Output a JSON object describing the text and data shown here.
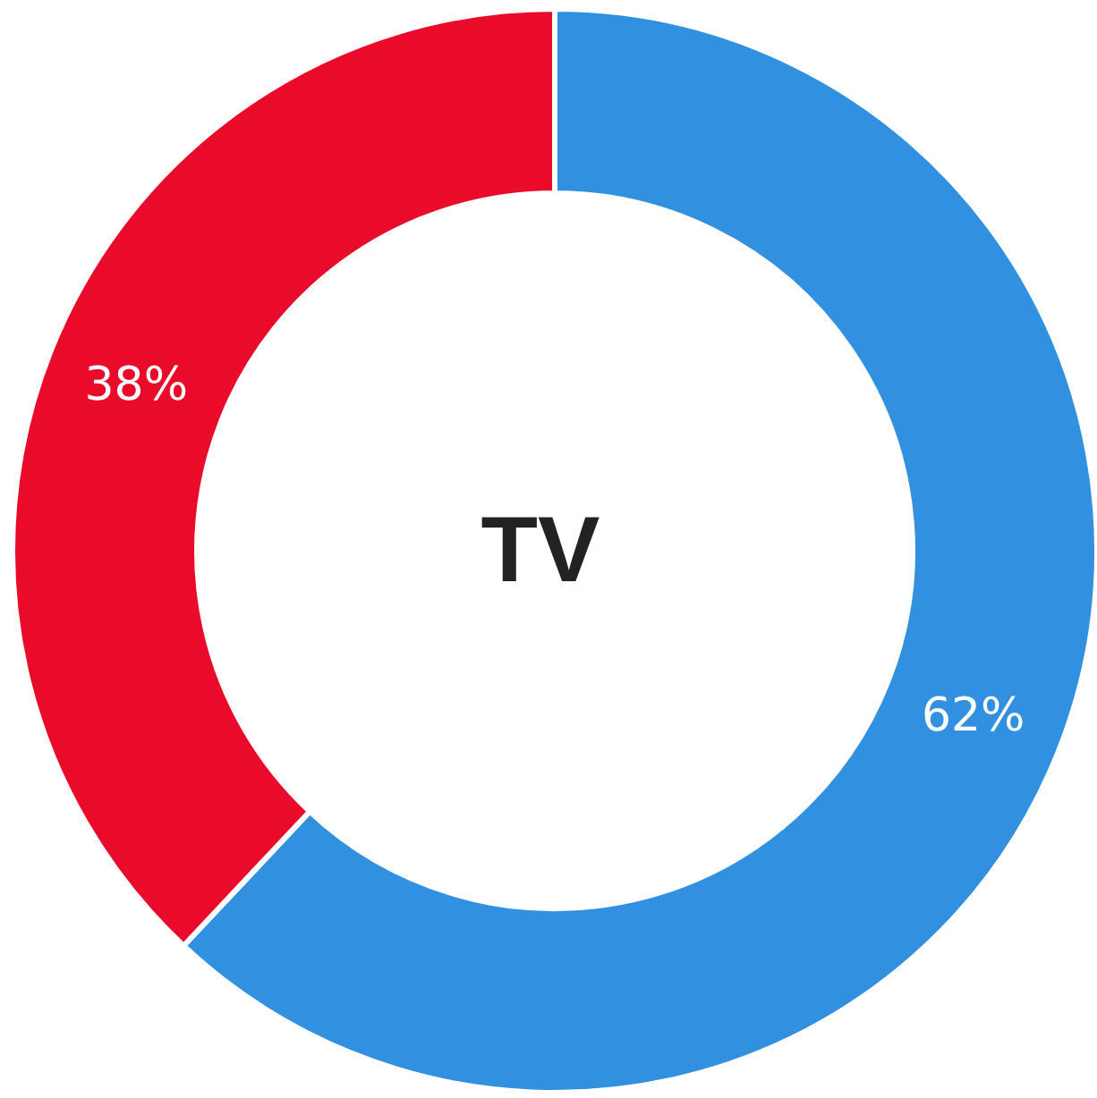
{
  "chart_data": {
    "type": "donut",
    "title": "TV",
    "categories": [
      null,
      null
    ],
    "values": [
      62,
      38
    ],
    "colors": [
      "#3290e0",
      "#ea0a2a"
    ],
    "value_labels": [
      "62%",
      "38%"
    ],
    "legend": false
  }
}
